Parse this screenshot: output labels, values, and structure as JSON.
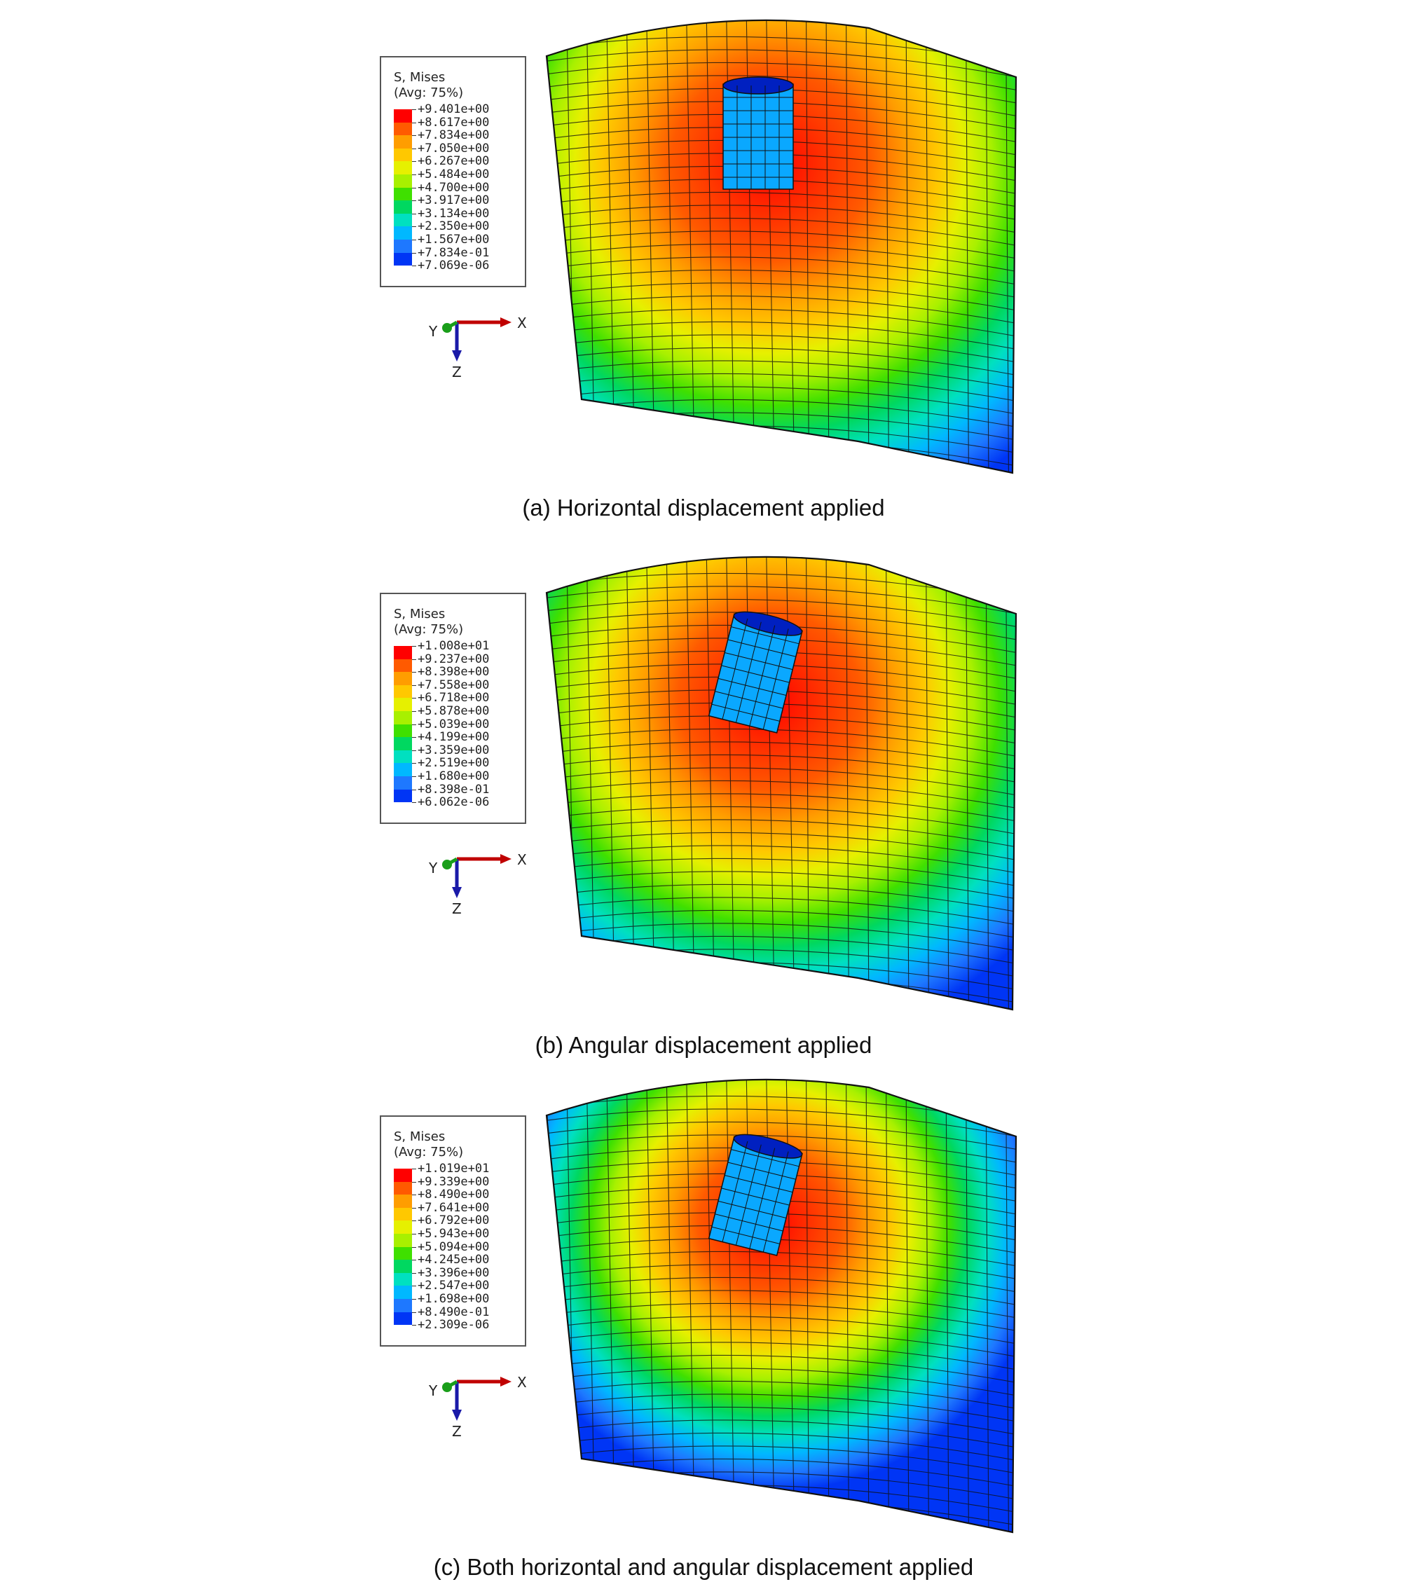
{
  "panels": [
    {
      "caption": "(a) Horizontal displacement applied",
      "legend": {
        "title": "S, Mises",
        "subtitle": "(Avg: 75%)",
        "values": [
          "+9.401e+00",
          "+8.617e+00",
          "+7.834e+00",
          "+7.050e+00",
          "+6.267e+00",
          "+5.484e+00",
          "+4.700e+00",
          "+3.917e+00",
          "+3.134e+00",
          "+2.350e+00",
          "+1.567e+00",
          "+7.834e-01",
          "+7.069e-06"
        ]
      },
      "axes": {
        "x": "X",
        "y": "Y",
        "z": "Z"
      }
    },
    {
      "caption": "(b) Angular displacement applied",
      "legend": {
        "title": "S, Mises",
        "subtitle": "(Avg: 75%)",
        "values": [
          "+1.008e+01",
          "+9.237e+00",
          "+8.398e+00",
          "+7.558e+00",
          "+6.718e+00",
          "+5.878e+00",
          "+5.039e+00",
          "+4.199e+00",
          "+3.359e+00",
          "+2.519e+00",
          "+1.680e+00",
          "+8.398e-01",
          "+6.062e-06"
        ]
      },
      "axes": {
        "x": "X",
        "y": "Y",
        "z": "Z"
      }
    },
    {
      "caption": "(c) Both horizontal and angular displacement applied",
      "legend": {
        "title": "S, Mises",
        "subtitle": "(Avg: 75%)",
        "values": [
          "+1.019e+01",
          "+9.339e+00",
          "+8.490e+00",
          "+7.641e+00",
          "+6.792e+00",
          "+5.943e+00",
          "+5.094e+00",
          "+4.245e+00",
          "+3.396e+00",
          "+2.547e+00",
          "+1.698e+00",
          "+8.490e-01",
          "+2.309e-06"
        ]
      },
      "axes": {
        "x": "X",
        "y": "Y",
        "z": "Z"
      }
    }
  ],
  "colors": {
    "contour_scale": [
      "#ff0000",
      "#ff5a00",
      "#ff9d00",
      "#ffc800",
      "#e6f000",
      "#a8f000",
      "#3fe000",
      "#00d860",
      "#00e0c0",
      "#00b8ff",
      "#1e78ff",
      "#0035f5"
    ],
    "axis_x": "#c00000",
    "axis_y": "#1a9e1a",
    "axis_z": "#1a1aa8"
  }
}
